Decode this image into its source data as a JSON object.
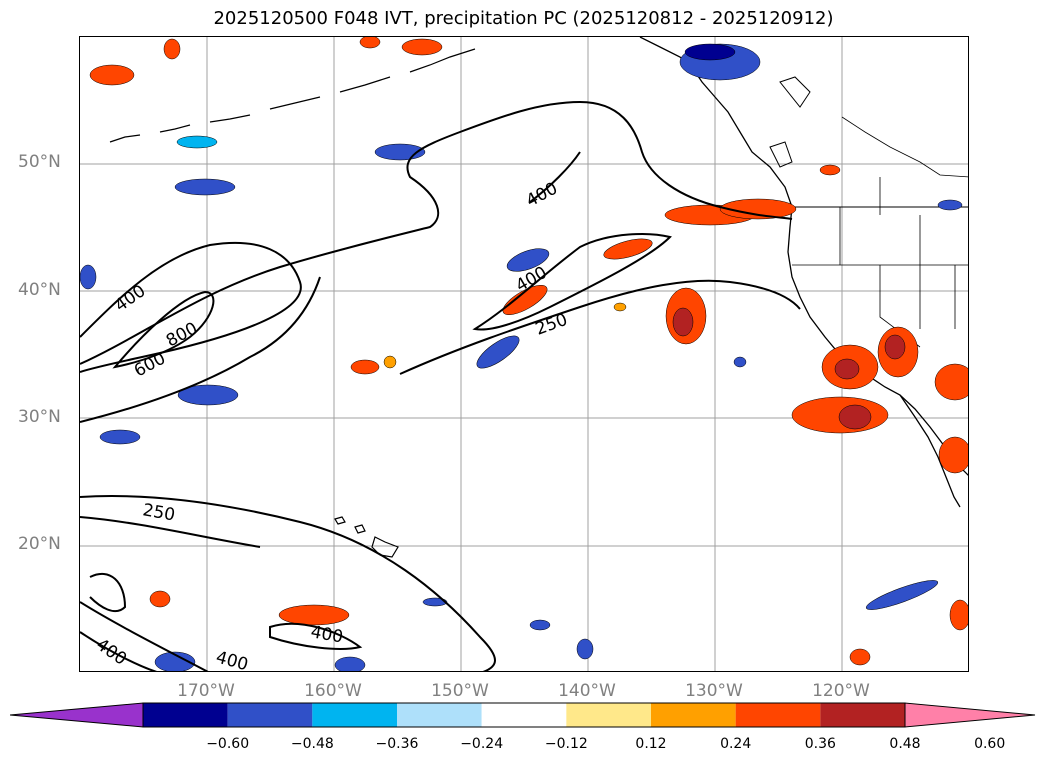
{
  "title": "2025120500 F048 IVT, precipitation PC (2025120812 - 2025120912)",
  "map": {
    "extent": {
      "lon_min": -180,
      "lon_max": -110,
      "lat_min": 10,
      "lat_max": 60
    },
    "lat_ticks": [
      "50°N",
      "40°N",
      "30°N",
      "20°N"
    ],
    "lon_ticks": [
      "170°W",
      "160°W",
      "150°W",
      "140°W",
      "130°W",
      "120°W"
    ],
    "ivt_contour_labels": [
      "400",
      "800",
      "600",
      "400",
      "400",
      "250",
      "250",
      "400",
      "400"
    ],
    "colors": {
      "contour": "#000000",
      "grid": "#a0a0a0",
      "coast": "#000000"
    }
  },
  "colorbar": {
    "extend": "both",
    "colors": [
      "#9932cc",
      "#000090",
      "#3050c8",
      "#00b4f0",
      "#aee0fa",
      "#ffffff",
      "#ffe88a",
      "#ffa000",
      "#ff4500",
      "#b22222",
      "#ff80a8"
    ],
    "tick_labels": [
      "−0.60",
      "−0.48",
      "−0.36",
      "−0.24",
      "−0.12",
      "0.12",
      "0.24",
      "0.36",
      "0.48",
      "0.60"
    ]
  }
}
